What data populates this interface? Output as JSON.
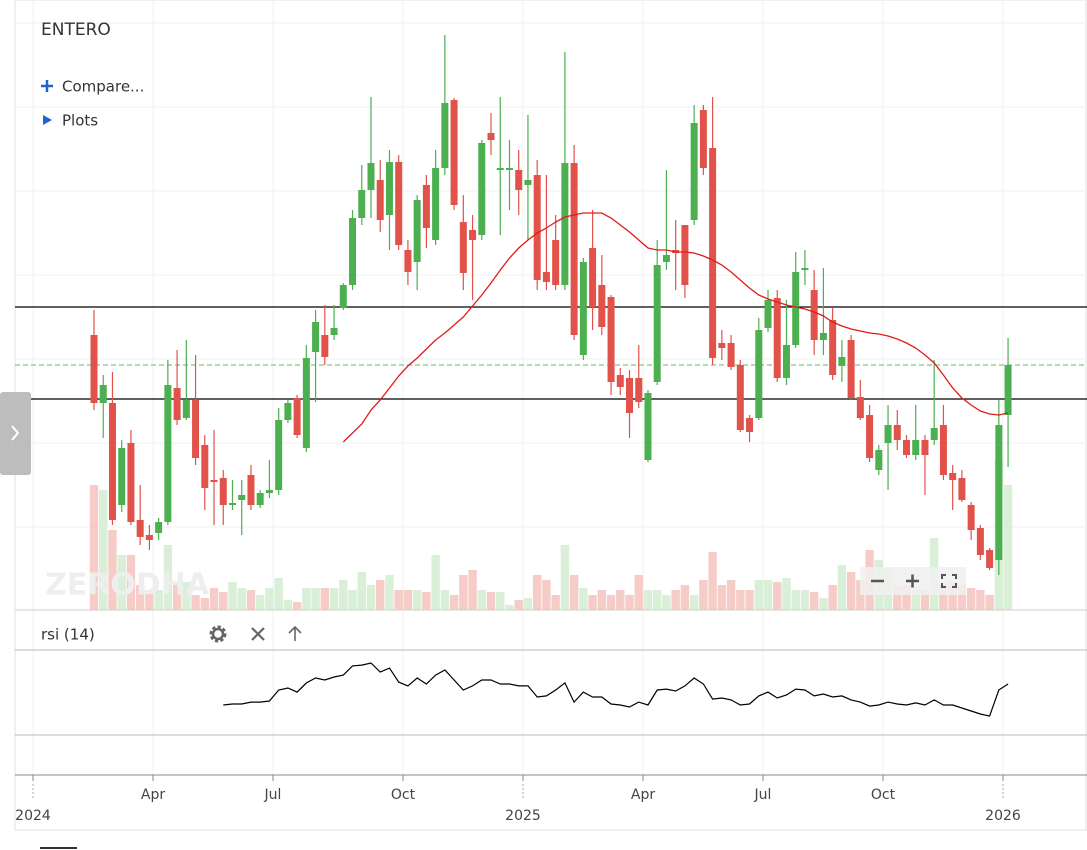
{
  "chart_data": [
    {
      "type": "candlestick",
      "title": "ENTERO",
      "compare_label": "Compare...",
      "plots_label": "Plots",
      "watermark": "ZERODHA",
      "ylim": [
        0,
        610
      ],
      "volume_ylim": [
        0,
        610
      ],
      "up_color": "#4caf50",
      "down_color": "#e0524a",
      "volume_up_color": "#d3ecd0",
      "volume_down_color": "#f4c3be",
      "ma_color": "#e31a1c",
      "hlines": [
        303,
        211
      ],
      "hline_color": "#000000",
      "price_line": 245,
      "price_line_color": "#6ab46a",
      "xtick_labels": [
        "2024",
        "Apr",
        "Jul",
        "Oct",
        "2025",
        "Apr",
        "Jul",
        "Oct",
        "2026"
      ],
      "open": [
        275,
        207,
        207,
        105,
        167,
        90,
        75,
        77,
        88,
        222,
        192,
        210,
        165,
        130,
        132,
        105,
        110,
        135,
        105,
        117,
        120,
        190,
        212,
        162,
        258,
        275,
        275,
        302,
        325,
        392,
        420,
        430,
        395,
        448,
        360,
        348,
        425,
        370,
        442,
        510,
        388,
        380,
        375,
        477,
        440,
        440,
        440,
        425,
        435,
        338,
        370,
        325,
        447,
        255,
        362,
        325,
        313,
        235,
        232,
        232,
        150,
        228,
        348,
        360,
        385,
        390,
        500,
        462,
        267,
        267,
        245,
        192,
        192,
        282,
        312,
        232,
        265,
        340,
        320,
        270,
        290,
        244,
        270,
        213,
        195,
        140,
        167,
        185,
        170,
        155,
        170,
        170,
        185,
        137,
        132,
        105,
        82,
        60,
        50,
        195
      ],
      "high": [
        300,
        235,
        238,
        170,
        180,
        125,
        85,
        92,
        250,
        260,
        270,
        255,
        175,
        180,
        140,
        130,
        130,
        145,
        120,
        150,
        202,
        210,
        215,
        265,
        300,
        305,
        305,
        327,
        400,
        445,
        513,
        450,
        460,
        455,
        370,
        415,
        435,
        460,
        575,
        512,
        415,
        395,
        470,
        497,
        513,
        470,
        460,
        495,
        450,
        435,
        395,
        558,
        465,
        352,
        400,
        355,
        315,
        242,
        240,
        265,
        220,
        370,
        440,
        390,
        385,
        505,
        505,
        513,
        280,
        275,
        250,
        195,
        292,
        320,
        320,
        310,
        358,
        360,
        340,
        342,
        302,
        270,
        275,
        230,
        205,
        165,
        205,
        200,
        175,
        205,
        175,
        250,
        205,
        145,
        140,
        108,
        85,
        62,
        210,
        272
      ],
      "low": [
        200,
        172,
        85,
        98,
        85,
        65,
        60,
        70,
        85,
        185,
        190,
        145,
        100,
        85,
        85,
        100,
        75,
        100,
        102,
        112,
        115,
        187,
        172,
        158,
        208,
        245,
        270,
        300,
        320,
        385,
        392,
        378,
        360,
        360,
        325,
        320,
        362,
        365,
        435,
        400,
        320,
        310,
        370,
        455,
        375,
        400,
        395,
        370,
        320,
        320,
        320,
        320,
        270,
        250,
        280,
        275,
        215,
        215,
        172,
        202,
        148,
        225,
        340,
        320,
        312,
        385,
        435,
        245,
        250,
        240,
        178,
        168,
        190,
        278,
        228,
        225,
        262,
        325,
        255,
        255,
        230,
        228,
        210,
        190,
        148,
        135,
        120,
        160,
        152,
        150,
        115,
        165,
        130,
        100,
        108,
        70,
        50,
        40,
        35,
        143
      ],
      "close": [
        207,
        225,
        90,
        162,
        88,
        73,
        70,
        88,
        225,
        190,
        210,
        152,
        122,
        128,
        105,
        107,
        115,
        105,
        117,
        120,
        190,
        207,
        175,
        252,
        288,
        253,
        282,
        325,
        392,
        420,
        447,
        390,
        448,
        365,
        338,
        410,
        382,
        442,
        507,
        405,
        337,
        370,
        467,
        470,
        442,
        442,
        420,
        430,
        330,
        328,
        325,
        447,
        275,
        348,
        303,
        283,
        228,
        223,
        197,
        208,
        217,
        345,
        355,
        357,
        325,
        487,
        442,
        252,
        262,
        243,
        180,
        178,
        280,
        310,
        232,
        265,
        338,
        342,
        270,
        277,
        235,
        253,
        212,
        192,
        152,
        160,
        185,
        170,
        155,
        170,
        155,
        182,
        135,
        130,
        110,
        80,
        55,
        42,
        185,
        245
      ],
      "volume": [
        125,
        120,
        80,
        55,
        55,
        25,
        20,
        20,
        65,
        25,
        28,
        15,
        12,
        22,
        18,
        28,
        22,
        20,
        15,
        22,
        32,
        10,
        8,
        22,
        22,
        22,
        22,
        30,
        20,
        38,
        25,
        30,
        35,
        20,
        20,
        20,
        18,
        55,
        20,
        15,
        35,
        40,
        20,
        18,
        18,
        5,
        10,
        12,
        35,
        30,
        15,
        65,
        35,
        22,
        15,
        20,
        15,
        20,
        15,
        35,
        20,
        20,
        15,
        20,
        25,
        15,
        30,
        58,
        25,
        30,
        20,
        20,
        30,
        30,
        28,
        32,
        20,
        20,
        18,
        12,
        25,
        45,
        38,
        30,
        60,
        50,
        42,
        25,
        25,
        20,
        20,
        72,
        25,
        28,
        25,
        22,
        20,
        15,
        150,
        125
      ],
      "ma": [
        null,
        null,
        null,
        null,
        null,
        null,
        null,
        null,
        null,
        null,
        null,
        null,
        null,
        null,
        null,
        null,
        null,
        null,
        null,
        null,
        null,
        null,
        null,
        null,
        null,
        null,
        null,
        168,
        177,
        186,
        200,
        210,
        222,
        234,
        244,
        252,
        261,
        270,
        277,
        285,
        293,
        304,
        315,
        327,
        340,
        352,
        362,
        370,
        377,
        382,
        388,
        393,
        395,
        397,
        397,
        397,
        392,
        385,
        378,
        370,
        362,
        360,
        360,
        358,
        358,
        357,
        354,
        350,
        345,
        338,
        330,
        322,
        315,
        311,
        308,
        305,
        303,
        301,
        298,
        294,
        288,
        284,
        281,
        279,
        277,
        276,
        274,
        271,
        267,
        262,
        255,
        247,
        235,
        222,
        212,
        205,
        199,
        196,
        195,
        197
      ]
    },
    {
      "type": "line",
      "title": "rsi (14)",
      "ylim": [
        30,
        70
      ],
      "color": "#000000",
      "values": [
        null,
        null,
        null,
        null,
        null,
        null,
        null,
        null,
        null,
        null,
        null,
        null,
        null,
        null,
        44.1,
        44.6,
        44.6,
        45.5,
        45.5,
        46.0,
        51.2,
        52.1,
        50.2,
        54.5,
        56.8,
        55.9,
        57.3,
        58.2,
        62.5,
        62.9,
        63.9,
        59.6,
        61.5,
        54.9,
        53.1,
        56.8,
        54.0,
        58.2,
        60.6,
        55.9,
        51.2,
        53.1,
        55.9,
        55.9,
        54.0,
        54.0,
        53.1,
        53.1,
        47.9,
        48.4,
        51.2,
        54.5,
        45.5,
        50.2,
        47.9,
        47.9,
        44.6,
        44.1,
        43.2,
        45.5,
        44.1,
        51.2,
        51.6,
        50.7,
        53.1,
        56.8,
        54.0,
        46.9,
        47.4,
        46.5,
        44.1,
        44.6,
        48.4,
        50.2,
        47.4,
        48.8,
        51.6,
        51.2,
        48.4,
        49.3,
        47.9,
        48.4,
        46.5,
        45.5,
        43.6,
        44.1,
        45.5,
        44.6,
        44.1,
        45.1,
        44.1,
        46.5,
        44.1,
        44.1,
        42.7,
        41.3,
        39.9,
        38.9,
        51.2,
        54.0
      ]
    }
  ]
}
